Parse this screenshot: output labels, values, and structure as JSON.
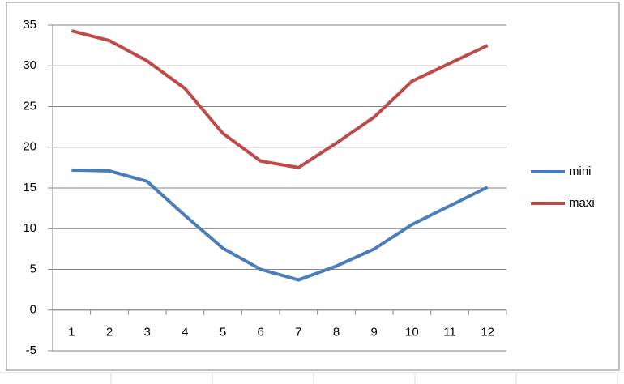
{
  "chart_data": {
    "type": "line",
    "categories": [
      "1",
      "2",
      "3",
      "4",
      "5",
      "6",
      "7",
      "8",
      "9",
      "10",
      "11",
      "12"
    ],
    "series": [
      {
        "name": "mini",
        "color": "#4a7ebb",
        "values": [
          17.2,
          17.1,
          15.8,
          11.6,
          7.6,
          5.0,
          3.7,
          5.4,
          7.5,
          10.5,
          12.8,
          15.1
        ]
      },
      {
        "name": "maxi",
        "color": "#be4b48",
        "values": [
          34.3,
          33.1,
          30.6,
          27.2,
          21.7,
          18.3,
          17.5,
          20.5,
          23.7,
          28.1,
          30.3,
          32.5
        ]
      }
    ],
    "ylim": [
      -5,
      35
    ],
    "yticks": [
      -5,
      0,
      5,
      10,
      15,
      20,
      25,
      30,
      35
    ],
    "grid": true,
    "legend": "right"
  }
}
